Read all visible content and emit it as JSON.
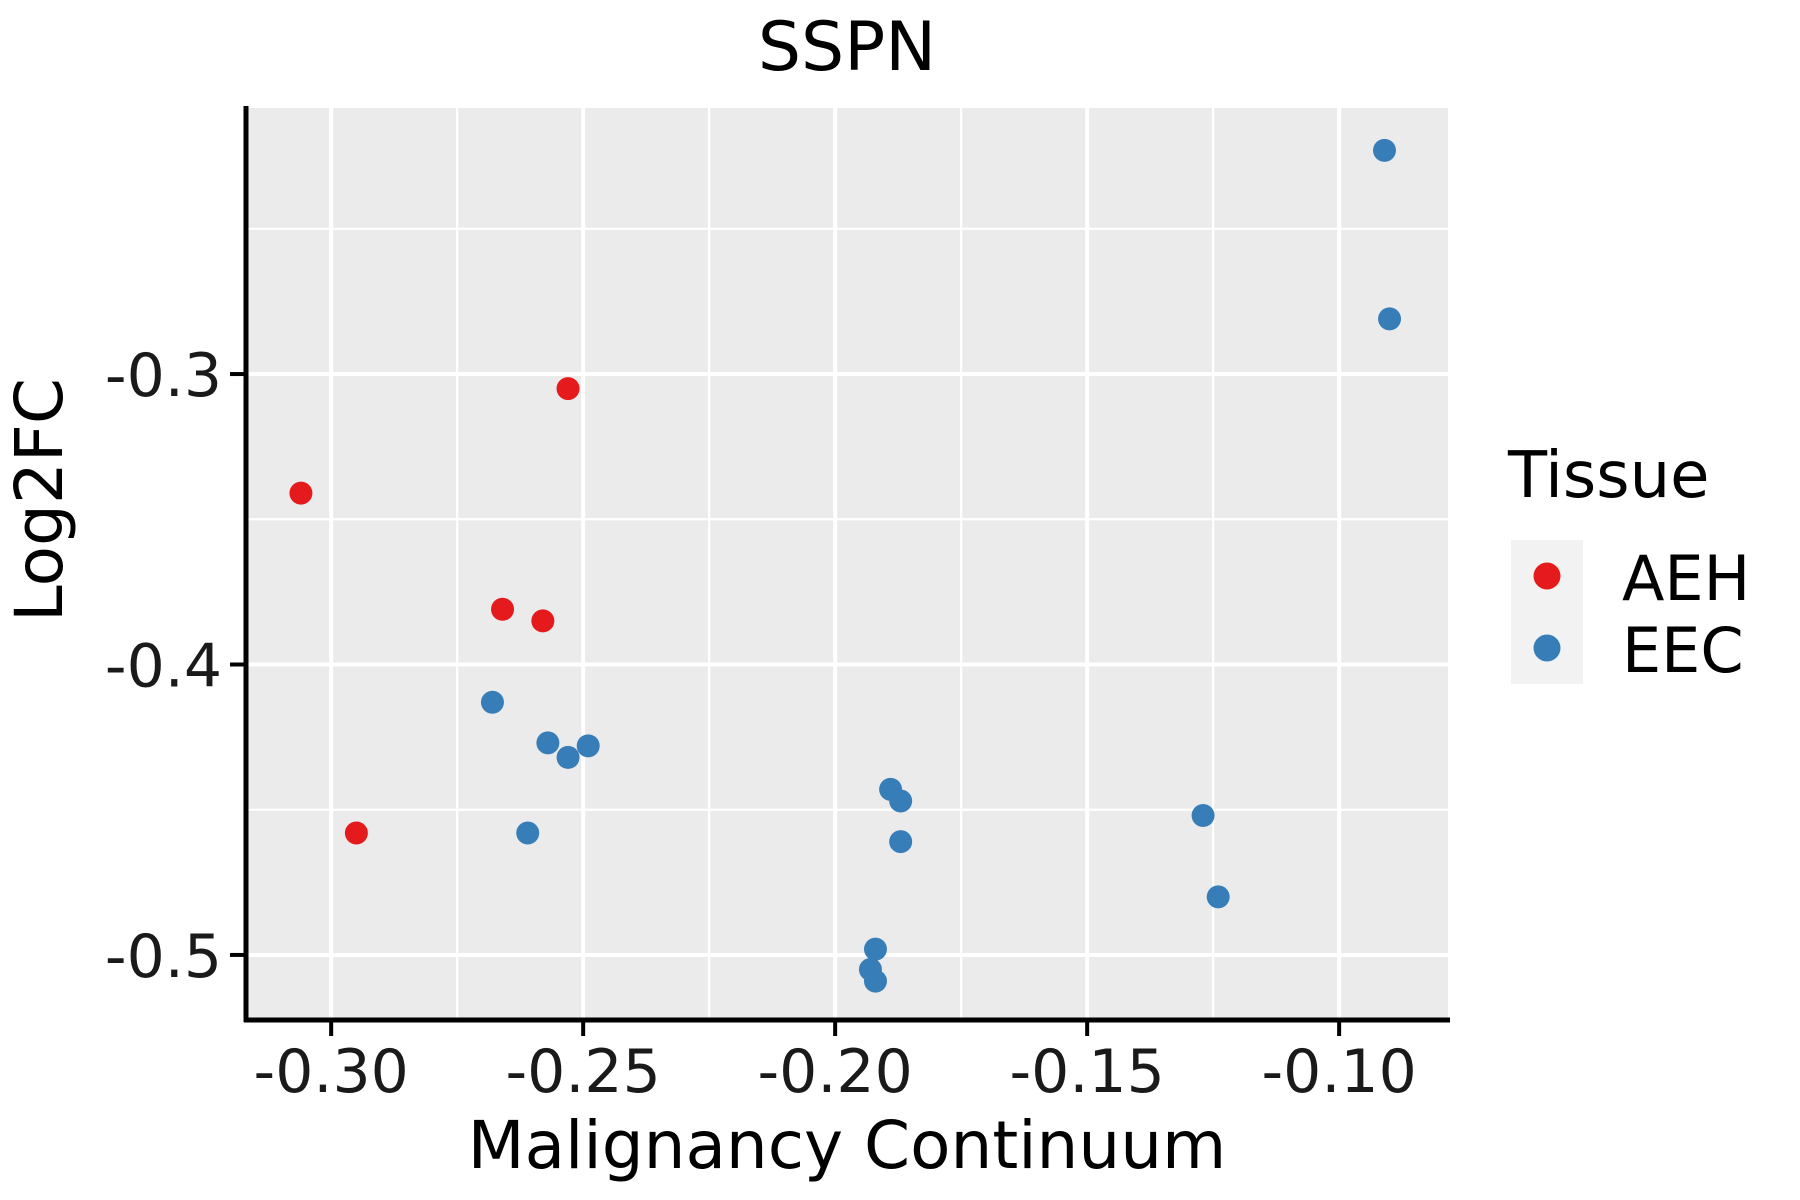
{
  "chart_data": {
    "type": "scatter",
    "title": "SSPN",
    "xlabel": "Malignancy Continuum",
    "ylabel": "Log2FC",
    "xlim": [
      -0.3169,
      -0.0784
    ],
    "ylim": [
      -0.5224,
      -0.2084
    ],
    "x_major_ticks": [
      -0.3,
      -0.25,
      -0.2,
      -0.15,
      -0.1
    ],
    "x_tick_labels": [
      "-0.30",
      "-0.25",
      "-0.20",
      "-0.15",
      "-0.10"
    ],
    "x_minor_ticks": [
      -0.275,
      -0.225,
      -0.175,
      -0.125
    ],
    "y_major_ticks": [
      -0.3,
      -0.4,
      -0.5
    ],
    "y_tick_labels": [
      "-0.3",
      "-0.4",
      "-0.5"
    ],
    "y_minor_ticks": [
      -0.25,
      -0.35,
      -0.45
    ],
    "grid": true,
    "legend_position": "right",
    "legend_title": "Tissue",
    "series": [
      {
        "name": "AEH",
        "color": "#E41A1C",
        "points": [
          [
            -0.306,
            -0.341
          ],
          [
            -0.295,
            -0.458
          ],
          [
            -0.266,
            -0.381
          ],
          [
            -0.258,
            -0.385
          ],
          [
            -0.253,
            -0.305
          ]
        ]
      },
      {
        "name": "EEC",
        "color": "#377EB8",
        "points": [
          [
            -0.091,
            -0.223
          ],
          [
            -0.09,
            -0.281
          ],
          [
            -0.268,
            -0.413
          ],
          [
            -0.257,
            -0.427
          ],
          [
            -0.253,
            -0.432
          ],
          [
            -0.249,
            -0.428
          ],
          [
            -0.261,
            -0.458
          ],
          [
            -0.189,
            -0.443
          ],
          [
            -0.187,
            -0.447
          ],
          [
            -0.187,
            -0.461
          ],
          [
            -0.192,
            -0.498
          ],
          [
            -0.193,
            -0.505
          ],
          [
            -0.192,
            -0.509
          ],
          [
            -0.127,
            -0.452
          ],
          [
            -0.124,
            -0.48
          ]
        ]
      }
    ]
  },
  "colors": {
    "panel_background": "#EBEBEB",
    "grid_major": "#FFFFFF",
    "grid_minor": "#FFFFFF",
    "axis_line": "#000000",
    "legend_key_background": "#F2F2F2",
    "aeh": "#E41A1C",
    "eec": "#377EB8"
  }
}
